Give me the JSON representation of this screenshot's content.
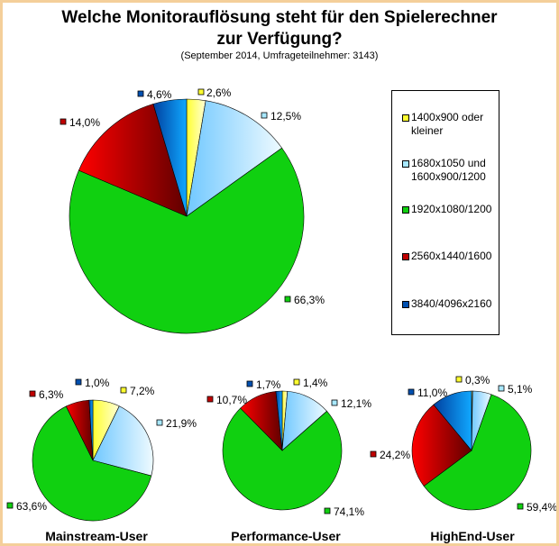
{
  "title_line1": "Welche Monitorauflösung steht für den Spielerechner",
  "title_line2": "zur Verfügung?",
  "subtitle": "(September 2014, Umfrageteilnehmer: 3143)",
  "colors": {
    "1400x900": "#ffff30",
    "1680x1050": "#a8e8ff",
    "1920x1080": "#10d010",
    "2560x1440": "#c00000",
    "3840x4096": "#0050b0"
  },
  "chart_data": [
    {
      "type": "pie",
      "title": "",
      "categories": [
        "1400x900 oder kleiner",
        "1680x1050 und 1600x900/1200",
        "1920x1080/1200",
        "2560x1440/1600",
        "3840/4096x2160"
      ],
      "values": [
        2.6,
        12.5,
        66.3,
        14.0,
        4.6
      ],
      "labels": [
        "2,6%",
        "12,5%",
        "66,3%",
        "14,0%",
        "4,6%"
      ],
      "legend": "right"
    },
    {
      "type": "pie",
      "title": "Mainstream-User",
      "categories": [
        "1400x900 oder kleiner",
        "1680x1050 und 1600x900/1200",
        "1920x1080/1200",
        "2560x1440/1600",
        "3840/4096x2160"
      ],
      "values": [
        7.2,
        21.9,
        63.6,
        6.3,
        1.0
      ],
      "labels": [
        "7,2%",
        "21,9%",
        "63,6%",
        "6,3%",
        "1,0%"
      ]
    },
    {
      "type": "pie",
      "title": "Performance-User",
      "categories": [
        "1400x900 oder kleiner",
        "1680x1050 und 1600x900/1200",
        "1920x1080/1200",
        "2560x1440/1600",
        "3840/4096x2160"
      ],
      "values": [
        1.4,
        12.1,
        74.1,
        10.7,
        1.7
      ],
      "labels": [
        "1,4%",
        "12,1%",
        "74,1%",
        "10,7%",
        "1,7%"
      ]
    },
    {
      "type": "pie",
      "title": "HighEnd-User",
      "categories": [
        "1400x900 oder kleiner",
        "1680x1050 und 1600x900/1200",
        "1920x1080/1200",
        "2560x1440/1600",
        "3840/4096x2160"
      ],
      "values": [
        0.3,
        5.1,
        59.4,
        24.2,
        11.0
      ],
      "labels": [
        "0,3%",
        "5,1%",
        "59,4%",
        "24,2%",
        "11,0%"
      ]
    }
  ],
  "legend": {
    "items": [
      {
        "label": "1400x900 oder kleiner",
        "color_key": "1400x900"
      },
      {
        "label": "1680x1050 und 1600x900/1200",
        "color_key": "1680x1050"
      },
      {
        "label": "1920x1080/1200",
        "color_key": "1920x1080"
      },
      {
        "label": "2560x1440/1600",
        "color_key": "2560x1440"
      },
      {
        "label": "3840/4096x2160",
        "color_key": "3840x4096"
      }
    ]
  }
}
